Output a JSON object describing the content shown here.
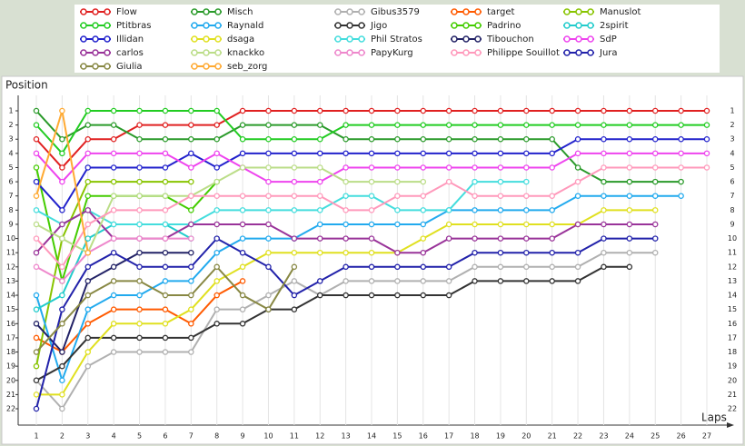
{
  "chart_data": {
    "type": "line",
    "y_label": "Position",
    "x_label": "Laps",
    "x": [
      1,
      2,
      3,
      4,
      5,
      6,
      7,
      8,
      9,
      10,
      11,
      12,
      13,
      14,
      15,
      16,
      17,
      18,
      19,
      20,
      21,
      22,
      23,
      24,
      25,
      26,
      27
    ],
    "xticks": [
      1,
      2,
      3,
      4,
      5,
      6,
      7,
      8,
      9,
      10,
      11,
      12,
      13,
      14,
      15,
      16,
      17,
      18,
      19,
      20,
      21,
      22,
      23,
      24,
      25,
      26,
      27
    ],
    "xlim": [
      1,
      27
    ],
    "ylim": [
      1,
      22
    ],
    "y_inverted": true,
    "yticks": [
      1,
      2,
      3,
      4,
      5,
      6,
      7,
      8,
      9,
      10,
      11,
      12,
      13,
      14,
      15,
      16,
      17,
      18,
      19,
      20,
      21,
      22
    ],
    "grid": true,
    "series": [
      {
        "name": "Flow",
        "color": "#e02020",
        "values": [
          3,
          5,
          3,
          3,
          2,
          2,
          2,
          2,
          1,
          1,
          1,
          1,
          1,
          1,
          1,
          1,
          1,
          1,
          1,
          1,
          1,
          1,
          1,
          1,
          1,
          1,
          1
        ]
      },
      {
        "name": "Misch",
        "color": "#2a9a2a",
        "values": [
          1,
          3,
          2,
          2,
          3,
          3,
          3,
          3,
          2,
          2,
          2,
          2,
          3,
          3,
          3,
          3,
          3,
          3,
          3,
          3,
          3,
          5,
          6,
          6,
          6,
          6,
          null
        ]
      },
      {
        "name": "Gibus3579",
        "color": "#b0b0b0",
        "values": [
          20,
          22,
          19,
          18,
          18,
          18,
          18,
          15,
          15,
          14,
          13,
          14,
          13,
          13,
          13,
          13,
          13,
          12,
          12,
          12,
          12,
          12,
          11,
          11,
          11,
          null,
          null
        ]
      },
      {
        "name": "target",
        "color": "#ff5a00",
        "values": [
          17,
          18,
          16,
          15,
          15,
          15,
          16,
          14,
          13,
          null,
          null,
          null,
          null,
          null,
          null,
          null,
          null,
          null,
          null,
          null,
          null,
          null,
          null,
          null,
          null,
          null,
          null
        ]
      },
      {
        "name": "Manuslot",
        "color": "#88c400",
        "values": [
          19,
          10,
          6,
          6,
          6,
          6,
          6,
          null,
          null,
          null,
          null,
          null,
          null,
          null,
          null,
          null,
          null,
          null,
          null,
          null,
          null,
          null,
          null,
          null,
          null,
          null,
          null
        ]
      },
      {
        "name": "Ptitbras",
        "color": "#22cc22",
        "values": [
          2,
          4,
          1,
          1,
          1,
          1,
          1,
          1,
          3,
          3,
          3,
          3,
          2,
          2,
          2,
          2,
          2,
          2,
          2,
          2,
          2,
          2,
          2,
          2,
          2,
          2,
          2
        ]
      },
      {
        "name": "Raynald",
        "color": "#22aaee",
        "values": [
          14,
          20,
          15,
          14,
          14,
          13,
          13,
          11,
          10,
          10,
          10,
          9,
          9,
          9,
          9,
          9,
          8,
          8,
          8,
          8,
          8,
          7,
          7,
          7,
          7,
          7,
          null
        ]
      },
      {
        "name": "Jigo",
        "color": "#333333",
        "values": [
          20,
          19,
          17,
          17,
          17,
          17,
          17,
          16,
          16,
          15,
          15,
          14,
          14,
          14,
          14,
          14,
          14,
          13,
          13,
          13,
          13,
          13,
          12,
          12,
          null,
          null,
          null
        ]
      },
      {
        "name": "Padrino",
        "color": "#44cc00",
        "values": [
          5,
          13,
          7,
          7,
          7,
          7,
          8,
          6,
          null,
          null,
          null,
          null,
          null,
          null,
          null,
          null,
          null,
          null,
          null,
          null,
          null,
          null,
          null,
          null,
          null,
          null,
          null
        ]
      },
      {
        "name": "2spirit",
        "color": "#22cccc",
        "values": [
          15,
          14,
          10,
          9,
          9,
          9,
          10,
          null,
          null,
          null,
          null,
          null,
          null,
          null,
          null,
          null,
          null,
          null,
          null,
          null,
          null,
          null,
          null,
          null,
          null,
          null,
          null
        ]
      },
      {
        "name": "Illidan",
        "color": "#2222cc",
        "values": [
          6,
          8,
          5,
          5,
          5,
          5,
          4,
          5,
          4,
          4,
          4,
          4,
          4,
          4,
          4,
          4,
          4,
          4,
          4,
          4,
          4,
          3,
          3,
          3,
          3,
          3,
          3
        ]
      },
      {
        "name": "dsaga",
        "color": "#e0e020",
        "values": [
          21,
          21,
          18,
          16,
          16,
          16,
          15,
          13,
          12,
          11,
          11,
          11,
          11,
          11,
          11,
          10,
          9,
          9,
          9,
          9,
          9,
          9,
          8,
          8,
          8,
          null,
          null
        ]
      },
      {
        "name": "Phil Stratos",
        "color": "#44dddd",
        "values": [
          8,
          9,
          8,
          9,
          9,
          9,
          9,
          8,
          8,
          8,
          8,
          8,
          7,
          7,
          8,
          8,
          8,
          6,
          6,
          6,
          null,
          null,
          null,
          null,
          null,
          null,
          null
        ]
      },
      {
        "name": "Tibouchon",
        "color": "#222266",
        "values": [
          16,
          18,
          13,
          12,
          11,
          11,
          11,
          null,
          null,
          null,
          null,
          null,
          null,
          null,
          null,
          null,
          null,
          null,
          null,
          null,
          null,
          null,
          null,
          null,
          null,
          null,
          null
        ]
      },
      {
        "name": "SdP",
        "color": "#ee44ee",
        "values": [
          4,
          6,
          4,
          4,
          4,
          4,
          5,
          4,
          5,
          6,
          6,
          6,
          5,
          5,
          5,
          5,
          5,
          5,
          5,
          5,
          5,
          4,
          4,
          4,
          4,
          4,
          4
        ]
      },
      {
        "name": "carlos",
        "color": "#993399",
        "values": [
          11,
          9,
          8,
          10,
          10,
          10,
          9,
          9,
          9,
          9,
          10,
          10,
          10,
          10,
          11,
          11,
          10,
          10,
          10,
          10,
          10,
          9,
          9,
          9,
          9,
          null,
          null
        ]
      },
      {
        "name": "knackko",
        "color": "#bbdd88",
        "values": [
          9,
          10,
          11,
          7,
          7,
          7,
          7,
          6,
          5,
          5,
          5,
          5,
          6,
          6,
          6,
          6,
          null,
          null,
          null,
          null,
          null,
          null,
          null,
          null,
          null,
          null,
          null
        ]
      },
      {
        "name": "PapyKurg",
        "color": "#ee88cc",
        "values": [
          12,
          13,
          11,
          10,
          10,
          10,
          10,
          null,
          null,
          null,
          null,
          null,
          null,
          null,
          null,
          null,
          null,
          null,
          null,
          null,
          null,
          null,
          null,
          null,
          null,
          null,
          null
        ]
      },
      {
        "name": "Philippe Souillot",
        "color": "#ff99bb",
        "values": [
          10,
          12,
          9,
          8,
          8,
          8,
          7,
          7,
          7,
          7,
          7,
          7,
          8,
          8,
          7,
          7,
          6,
          7,
          7,
          7,
          7,
          6,
          5,
          5,
          5,
          5,
          5
        ]
      },
      {
        "name": "Jura",
        "color": "#2222aa",
        "values": [
          22,
          15,
          12,
          11,
          12,
          12,
          12,
          10,
          11,
          12,
          14,
          13,
          12,
          12,
          12,
          12,
          12,
          11,
          11,
          11,
          11,
          11,
          10,
          10,
          10,
          null,
          null
        ]
      },
      {
        "name": "Giulia",
        "color": "#888844",
        "values": [
          18,
          16,
          14,
          13,
          13,
          14,
          14,
          12,
          14,
          15,
          12,
          null,
          null,
          null,
          null,
          null,
          null,
          null,
          null,
          null,
          null,
          null,
          null,
          null,
          null,
          null,
          null
        ]
      },
      {
        "name": "seb_zorg",
        "color": "#ffaa33",
        "values": [
          7,
          1,
          11,
          null,
          null,
          null,
          null,
          null,
          null,
          null,
          null,
          null,
          null,
          null,
          null,
          null,
          null,
          null,
          null,
          null,
          null,
          null,
          null,
          null,
          null,
          null,
          null
        ]
      }
    ]
  }
}
